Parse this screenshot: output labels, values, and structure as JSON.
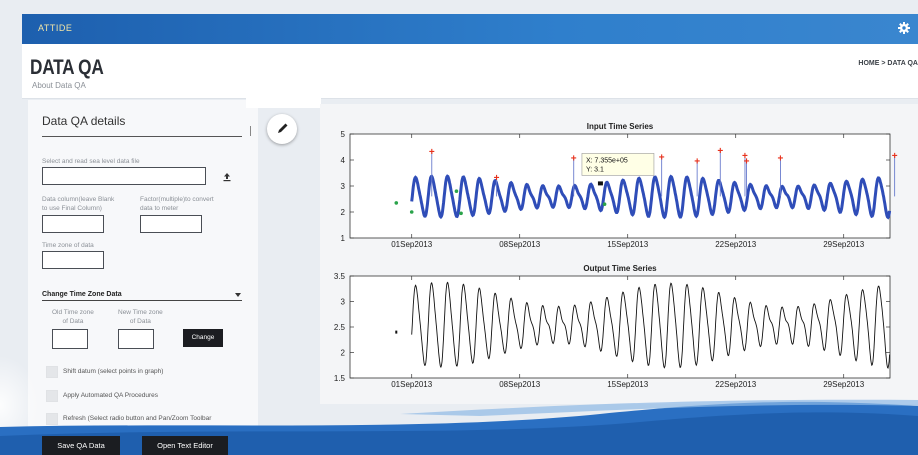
{
  "app": {
    "brand": "ATTIDE"
  },
  "page": {
    "title": "DATA QA",
    "subtitle": "About Data QA",
    "breadcrumb": "HOME > DATA QA"
  },
  "panel": {
    "title": "Data QA details",
    "file_label": "Select and read sea level data file",
    "file_value": "",
    "data_column_label": [
      "Data column(leave Blank",
      "to use Final Column)"
    ],
    "factor_label": [
      "Factor(multiple)to convert",
      "data to meter"
    ],
    "timezone_label": "Time zone of data",
    "section_title": "Change Time Zone Data",
    "old_tz_label": [
      "Old Time zone",
      "of Data"
    ],
    "new_tz_label": [
      "New Time zone",
      "of Data"
    ],
    "change_button": "Change",
    "checkboxes": [
      "Shift datum (select points in graph)",
      "Apply Automated QA Procedures",
      "Refresh (Select radio button and Pan/Zoom Toolbar"
    ]
  },
  "footer": {
    "save_button": "Save QA Data",
    "editor_button": "Open Text Editor"
  },
  "colors": {
    "accent": "#2a74c4",
    "series": "#2f4db8",
    "marker_red": "#e8321c",
    "marker_green": "#2aa34a"
  },
  "icons": {
    "settings": "gear-icon",
    "upload": "upload-icon",
    "edit": "pencil-icon"
  },
  "chart_data": [
    {
      "type": "line",
      "title": "Input Time Series",
      "xlabel": "",
      "ylabel": "",
      "x_ticks": [
        "01Sep2013",
        "08Sep2013",
        "15Sep2013",
        "22Sep2013",
        "29Sep2013"
      ],
      "ylim": [
        1,
        5
      ],
      "y_ticks": [
        "1",
        "2",
        "3",
        "4",
        "5"
      ],
      "x_range_days": [
        -3,
        32
      ],
      "series": [
        {
          "values_desc": "tidal oscillation",
          "start_day": 1,
          "end_day": 32,
          "mean": 2.6,
          "amp_min": 0.35,
          "amp_max": 0.75
        }
      ],
      "spikes_red": [
        {
          "day": 2.3,
          "y": 4.3
        },
        {
          "day": 6.5,
          "y": 3.3
        },
        {
          "day": 11.5,
          "y": 4.05
        },
        {
          "day": 17.2,
          "y": 4.1
        },
        {
          "day": 19.5,
          "y": 3.95
        },
        {
          "day": 21.0,
          "y": 4.35
        },
        {
          "day": 22.6,
          "y": 4.15
        },
        {
          "day": 22.7,
          "y": 3.95
        },
        {
          "day": 24.9,
          "y": 4.05
        },
        {
          "day": 32.3,
          "y": 4.15
        }
      ],
      "spikes_green": [
        {
          "day": 0,
          "y": 2.35
        },
        {
          "day": 1.0,
          "y": 2.0
        },
        {
          "day": 3.9,
          "y": 2.8
        },
        {
          "day": 4.2,
          "y": 1.95
        },
        {
          "day": 13.5,
          "y": 2.3
        }
      ],
      "annotation": {
        "day": 13.2,
        "y": 3.1,
        "line1": "X: 7.355e+05",
        "line2": "Y: 3.1"
      }
    },
    {
      "type": "line",
      "title": "Output Time Series",
      "xlabel": "",
      "ylabel": "",
      "x_ticks": [
        "01Sep2013",
        "08Sep2013",
        "15Sep2013",
        "22Sep2013",
        "29Sep2013"
      ],
      "ylim": [
        1.5,
        3.5
      ],
      "y_ticks": [
        "1.5",
        "2",
        "2.5",
        "3",
        "3.5"
      ],
      "x_range_days": [
        -3,
        32
      ],
      "series": [
        {
          "values_desc": "filtered tidal oscillation",
          "start_day": 1,
          "end_day": 32,
          "mean": 2.55,
          "amp_min": 0.3,
          "amp_max": 0.8
        }
      ],
      "isolated_point": {
        "day": 0,
        "y": 2.4
      }
    }
  ]
}
